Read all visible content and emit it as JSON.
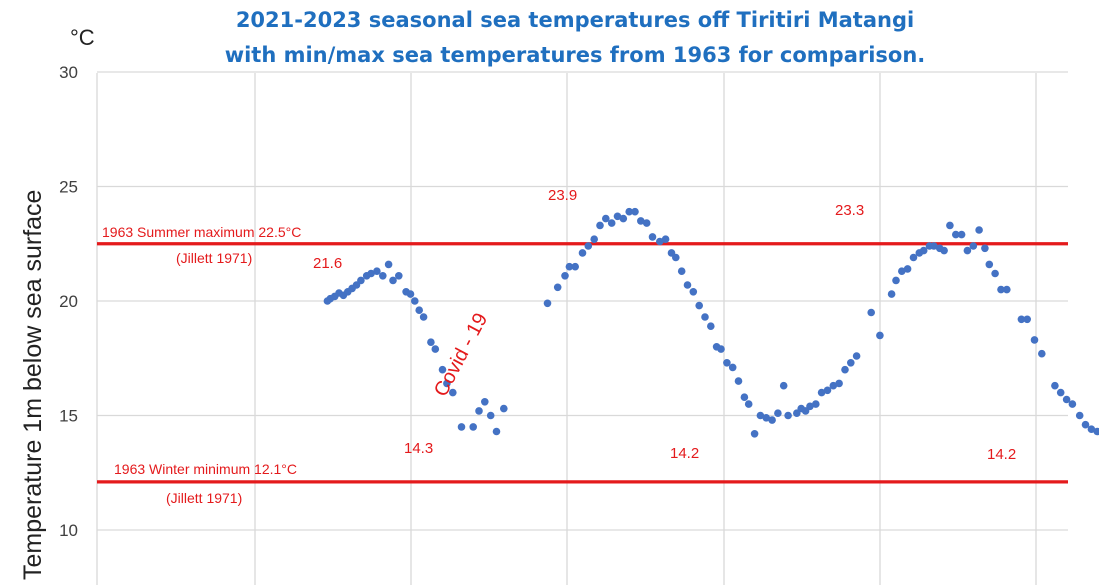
{
  "chart_data": {
    "type": "scatter",
    "title_line1": "2021-2023 seasonal sea temperatures off Tiritiri Matangi",
    "title_line2": "with min/max sea temperatures from 1963 for comparison.",
    "ylabel": "Temperature 1m below sea surface",
    "yunit": "°C",
    "ylim": [
      10,
      30
    ],
    "yticks": [
      "10",
      "15",
      "20",
      "25",
      "30"
    ],
    "grid": true,
    "colors": {
      "title": "#1f6fbf",
      "points": "#4472c4",
      "reference_lines": "#e41a1c",
      "annotations": "#e41a1c",
      "grid": "#d9d9d9",
      "tick_labels": "#404040"
    },
    "reference_lines": [
      {
        "value": 22.5,
        "label": "1963 Summer maximum 22.5°C",
        "sublabel": "(Jillett 1971)"
      },
      {
        "value": 12.1,
        "label": "1963 Winter minimum 12.1°C",
        "sublabel": "(Jillett 1971)"
      }
    ],
    "peak_labels": [
      {
        "text": "21.6",
        "t": 0.05,
        "value": 21.6
      },
      {
        "text": "14.3",
        "t": 0.1,
        "value": 14.3
      },
      {
        "text": "23.9",
        "t": 0.15,
        "value": 23.9
      },
      {
        "text": "14.2",
        "t": 0.2,
        "value": 14.2
      },
      {
        "text": "23.3",
        "t": 0.25,
        "value": 23.3
      },
      {
        "text": "14.2",
        "t": 0.3,
        "value": 14.2
      }
    ],
    "annotation": "Covid - 19",
    "points": [
      [
        0.158,
        20.0
      ],
      [
        0.16,
        20.1
      ],
      [
        0.163,
        20.2
      ],
      [
        0.166,
        20.35
      ],
      [
        0.169,
        20.25
      ],
      [
        0.172,
        20.4
      ],
      [
        0.175,
        20.55
      ],
      [
        0.178,
        20.7
      ],
      [
        0.181,
        20.9
      ],
      [
        0.185,
        21.1
      ],
      [
        0.188,
        21.2
      ],
      [
        0.192,
        21.3
      ],
      [
        0.196,
        21.1
      ],
      [
        0.2,
        21.6
      ],
      [
        0.203,
        20.9
      ],
      [
        0.207,
        21.1
      ],
      [
        0.212,
        20.4
      ],
      [
        0.215,
        20.3
      ],
      [
        0.218,
        20.0
      ],
      [
        0.221,
        19.6
      ],
      [
        0.224,
        19.3
      ],
      [
        0.229,
        18.2
      ],
      [
        0.232,
        17.9
      ],
      [
        0.237,
        17.0
      ],
      [
        0.24,
        16.4
      ],
      [
        0.244,
        16.0
      ],
      [
        0.25,
        14.5
      ],
      [
        0.258,
        14.5
      ],
      [
        0.262,
        15.2
      ],
      [
        0.266,
        15.6
      ],
      [
        0.27,
        15.0
      ],
      [
        0.274,
        14.3
      ],
      [
        0.279,
        15.3
      ],
      [
        0.309,
        19.9
      ],
      [
        0.316,
        20.6
      ],
      [
        0.321,
        21.1
      ],
      [
        0.324,
        21.5
      ],
      [
        0.328,
        21.5
      ],
      [
        0.333,
        22.1
      ],
      [
        0.337,
        22.4
      ],
      [
        0.341,
        22.7
      ],
      [
        0.345,
        23.3
      ],
      [
        0.349,
        23.6
      ],
      [
        0.353,
        23.4
      ],
      [
        0.357,
        23.7
      ],
      [
        0.361,
        23.6
      ],
      [
        0.365,
        23.9
      ],
      [
        0.369,
        23.9
      ],
      [
        0.373,
        23.5
      ],
      [
        0.377,
        23.4
      ],
      [
        0.381,
        22.8
      ],
      [
        0.386,
        22.6
      ],
      [
        0.39,
        22.7
      ],
      [
        0.394,
        22.1
      ],
      [
        0.397,
        21.9
      ],
      [
        0.401,
        21.3
      ],
      [
        0.405,
        20.7
      ],
      [
        0.409,
        20.4
      ],
      [
        0.413,
        19.8
      ],
      [
        0.417,
        19.3
      ],
      [
        0.421,
        18.9
      ],
      [
        0.425,
        18.0
      ],
      [
        0.428,
        17.9
      ],
      [
        0.432,
        17.3
      ],
      [
        0.436,
        17.1
      ],
      [
        0.44,
        16.5
      ],
      [
        0.444,
        15.8
      ],
      [
        0.447,
        15.5
      ],
      [
        0.451,
        14.2
      ],
      [
        0.455,
        15.0
      ],
      [
        0.459,
        14.9
      ],
      [
        0.463,
        14.8
      ],
      [
        0.467,
        15.1
      ],
      [
        0.471,
        16.3
      ],
      [
        0.474,
        15.0
      ],
      [
        0.48,
        15.1
      ],
      [
        0.483,
        15.3
      ],
      [
        0.486,
        15.2
      ],
      [
        0.489,
        15.4
      ],
      [
        0.493,
        15.5
      ],
      [
        0.497,
        16.0
      ],
      [
        0.501,
        16.1
      ],
      [
        0.505,
        16.3
      ],
      [
        0.509,
        16.4
      ],
      [
        0.513,
        17.0
      ],
      [
        0.517,
        17.3
      ],
      [
        0.521,
        17.6
      ],
      [
        0.531,
        19.5
      ],
      [
        0.537,
        18.5
      ],
      [
        0.545,
        20.3
      ],
      [
        0.548,
        20.9
      ],
      [
        0.552,
        21.3
      ],
      [
        0.556,
        21.4
      ],
      [
        0.56,
        21.9
      ],
      [
        0.564,
        22.1
      ],
      [
        0.567,
        22.2
      ],
      [
        0.571,
        22.4
      ],
      [
        0.574,
        22.4
      ],
      [
        0.578,
        22.3
      ],
      [
        0.581,
        22.2
      ],
      [
        0.585,
        23.3
      ],
      [
        0.589,
        22.9
      ],
      [
        0.593,
        22.9
      ],
      [
        0.597,
        22.2
      ],
      [
        0.601,
        22.4
      ],
      [
        0.605,
        23.1
      ],
      [
        0.609,
        22.3
      ],
      [
        0.612,
        21.6
      ],
      [
        0.616,
        21.2
      ],
      [
        0.62,
        20.5
      ],
      [
        0.624,
        20.5
      ],
      [
        0.634,
        19.2
      ],
      [
        0.638,
        19.2
      ],
      [
        0.643,
        18.3
      ],
      [
        0.648,
        17.7
      ],
      [
        0.657,
        16.3
      ],
      [
        0.661,
        16.0
      ],
      [
        0.665,
        15.7
      ],
      [
        0.669,
        15.5
      ],
      [
        0.674,
        15.0
      ],
      [
        0.678,
        14.6
      ],
      [
        0.682,
        14.4
      ],
      [
        0.686,
        14.3
      ],
      [
        0.69,
        14.3
      ],
      [
        0.694,
        14.5
      ],
      [
        0.698,
        14.6
      ],
      [
        0.702,
        15.0
      ],
      [
        0.706,
        15.8
      ],
      [
        0.71,
        16.2
      ],
      [
        0.714,
        16.0
      ],
      [
        0.718,
        16.3
      ],
      [
        0.722,
        16.2
      ],
      [
        0.725,
        17.2
      ],
      [
        0.729,
        17.8
      ],
      [
        0.733,
        18.2
      ]
    ]
  }
}
